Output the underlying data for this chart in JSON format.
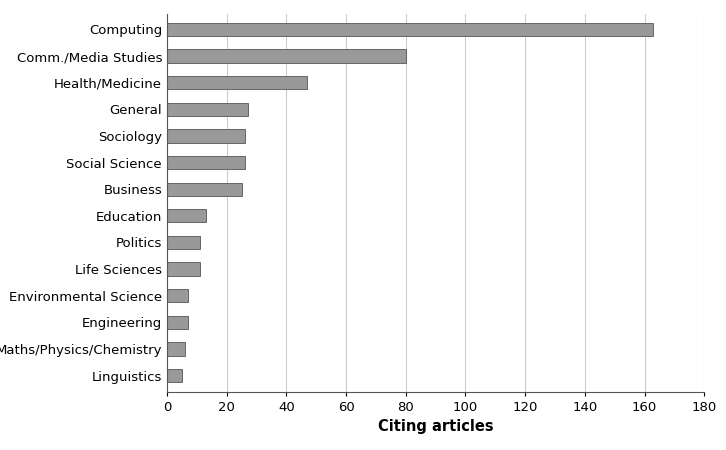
{
  "categories": [
    "Linguistics",
    "Maths/Physics/Chemistry",
    "Engineering",
    "Environmental Science",
    "Life Sciences",
    "Politics",
    "Education",
    "Business",
    "Social Science",
    "Sociology",
    "General",
    "Health/Medicine",
    "Comm./Media Studies",
    "Computing"
  ],
  "values": [
    5,
    6,
    7,
    7,
    11,
    11,
    13,
    25,
    26,
    26,
    27,
    47,
    80,
    163
  ],
  "bar_color": "#999999",
  "bar_edge_color": "#555555",
  "xlabel": "Citing articles",
  "xlim": [
    0,
    180
  ],
  "xticks": [
    0,
    20,
    40,
    60,
    80,
    100,
    120,
    140,
    160,
    180
  ],
  "grid_color": "#cccccc",
  "background_color": "#ffffff",
  "bar_height": 0.5,
  "label_fontsize": 9.5,
  "xlabel_fontsize": 10.5,
  "tick_fontsize": 9.5
}
